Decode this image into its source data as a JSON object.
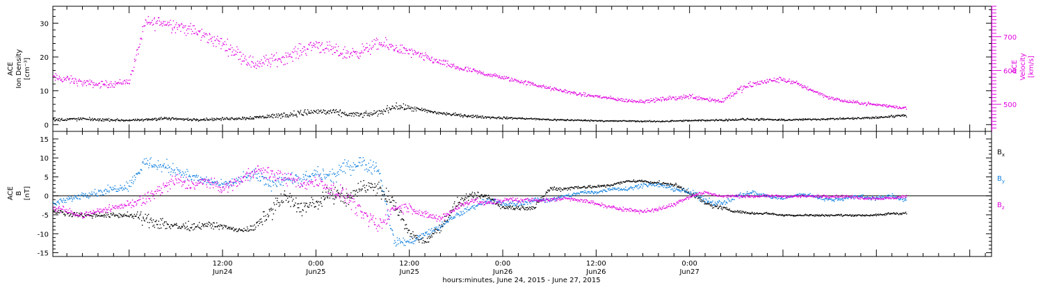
{
  "chart_data": [
    {
      "type": "scatter",
      "panel": "top",
      "ylabel_left": [
        "ACE",
        "Ion Density",
        "[cm⁻³]"
      ],
      "ylabel_right": [
        "ACE",
        "Velocity",
        "[km/s]"
      ],
      "ylim_left": [
        -2,
        35
      ],
      "ylim_right": [
        420,
        790
      ],
      "left_ticks": [
        "0",
        "10",
        "20",
        "30"
      ],
      "right_ticks": [
        "500",
        "600",
        "700"
      ],
      "series": [
        {
          "axis": "left",
          "color": "#000000",
          "x": [
            -9.8,
            -8,
            -6,
            -4,
            -2,
            0,
            2,
            4,
            6,
            8,
            10,
            12,
            14,
            16,
            18,
            20,
            22,
            24,
            26,
            28,
            30,
            32,
            34,
            36,
            38,
            40,
            42,
            44,
            46,
            48,
            50,
            52,
            54,
            56,
            58,
            60,
            62,
            64,
            66,
            68,
            70,
            72,
            74,
            76,
            78,
            80,
            82,
            84,
            86,
            88,
            90,
            92,
            94,
            96,
            98,
            99.8
          ],
          "y": [
            1.5,
            1.7,
            1.8,
            1.6,
            1.5,
            1.4,
            1.5,
            2.0,
            1.8,
            1.6,
            1.7,
            1.8,
            2.0,
            2.2,
            2.6,
            3.0,
            3.5,
            4.0,
            3.8,
            3.2,
            3.0,
            3.6,
            5.5,
            5.0,
            4.2,
            3.5,
            3.0,
            2.6,
            2.3,
            2.1,
            2.0,
            1.8,
            1.6,
            1.5,
            1.4,
            1.3,
            1.2,
            1.2,
            1.1,
            1.1,
            1.2,
            1.3,
            1.4,
            1.5,
            1.6,
            1.7,
            1.6,
            1.5,
            1.6,
            1.7,
            1.8,
            1.9,
            2.0,
            2.2,
            2.6,
            3.0
          ],
          "spread": [
            0.7,
            0.7,
            0.7,
            0.6,
            0.5,
            0.4,
            0.5,
            0.8,
            0.6,
            0.5,
            0.6,
            0.6,
            0.7,
            0.8,
            1.0,
            1.2,
            1.4,
            1.6,
            1.4,
            1.2,
            1.1,
            1.4,
            1.5,
            1.2,
            1.0,
            0.8,
            0.7,
            0.6,
            0.5,
            0.5,
            0.4,
            0.4,
            0.4,
            0.4,
            0.3,
            0.3,
            0.3,
            0.3,
            0.3,
            0.3,
            0.3,
            0.3,
            0.4,
            0.4,
            0.5,
            0.5,
            0.4,
            0.4,
            0.4,
            0.4,
            0.4,
            0.4,
            0.5,
            0.5,
            0.6,
            0.7
          ]
        },
        {
          "axis": "right",
          "color": "#e000e0",
          "x": [
            -9.8,
            -8,
            -6,
            -4,
            -2,
            0,
            2,
            4,
            6,
            8,
            10,
            12,
            14,
            16,
            18,
            20,
            22,
            24,
            26,
            28,
            30,
            32,
            34,
            36,
            38,
            40,
            42,
            44,
            46,
            48,
            50,
            52,
            54,
            56,
            58,
            60,
            62,
            64,
            66,
            68,
            70,
            72,
            74,
            76,
            78,
            80,
            82,
            84,
            86,
            88,
            90,
            92,
            94,
            96,
            98,
            99.8
          ],
          "y": [
            580,
            575,
            565,
            560,
            562,
            570,
            740,
            745,
            735,
            720,
            700,
            680,
            650,
            620,
            630,
            640,
            660,
            680,
            660,
            650,
            660,
            680,
            670,
            655,
            640,
            625,
            610,
            600,
            590,
            580,
            570,
            560,
            548,
            540,
            530,
            525,
            518,
            512,
            510,
            515,
            520,
            525,
            518,
            510,
            540,
            560,
            570,
            575,
            560,
            540,
            520,
            510,
            505,
            500,
            495,
            490
          ],
          "spread": [
            20,
            18,
            16,
            15,
            15,
            15,
            30,
            30,
            30,
            30,
            30,
            30,
            30,
            30,
            30,
            28,
            30,
            30,
            30,
            28,
            28,
            28,
            25,
            22,
            18,
            15,
            14,
            12,
            10,
            10,
            10,
            9,
            8,
            8,
            8,
            8,
            8,
            8,
            8,
            9,
            10,
            12,
            10,
            12,
            15,
            15,
            12,
            12,
            10,
            9,
            8,
            7,
            7,
            7,
            7,
            7
          ]
        }
      ]
    },
    {
      "type": "scatter",
      "panel": "bottom",
      "ylabel": [
        "ACE",
        "B",
        "[nT]"
      ],
      "ylim": [
        -16,
        17
      ],
      "ticks": [
        "-15",
        "-10",
        "-5",
        "0",
        "5",
        "10",
        "15"
      ],
      "legend_placement": "right",
      "series": [
        {
          "name_base": "B",
          "name_sub": "x",
          "color": "#000000",
          "x": [
            -9.8,
            -8,
            -6,
            -4,
            -2,
            0,
            2,
            4,
            6,
            8,
            10,
            12,
            14,
            16,
            18,
            20,
            22,
            24,
            26,
            28,
            30,
            32,
            34,
            36,
            38,
            40,
            42,
            44,
            46,
            48,
            50,
            52,
            54,
            56,
            58,
            60,
            62,
            64,
            66,
            68,
            70,
            72,
            74,
            76,
            78,
            80,
            82,
            84,
            86,
            88,
            90,
            92,
            94,
            96,
            98,
            99.8
          ],
          "y": [
            -4,
            -4.5,
            -5,
            -5,
            -5,
            -5,
            -6,
            -7,
            -8,
            -8,
            -7.5,
            -8,
            -9,
            -8.5,
            -4,
            0,
            -3,
            -2,
            1,
            -1,
            3,
            2,
            -2,
            -10,
            -12,
            -8,
            -2,
            0,
            0,
            -3,
            -3,
            -3,
            2,
            2,
            2.5,
            2.5,
            3,
            4,
            4,
            3.5,
            3,
            1,
            -2,
            -3,
            -4,
            -4.5,
            -4.5,
            -5,
            -5,
            -5,
            -5,
            -5,
            -5,
            -5,
            -4.5,
            -4.5
          ],
          "spread": [
            0.8,
            1,
            1,
            1,
            1,
            1,
            2.5,
            3,
            2,
            1.5,
            1.2,
            1,
            0.8,
            1.5,
            3,
            3,
            3,
            3,
            3,
            3,
            3,
            3,
            3,
            1.5,
            1.5,
            2,
            2,
            1.5,
            1.2,
            1,
            1,
            1,
            1,
            0.8,
            0.7,
            0.6,
            0.6,
            0.5,
            0.5,
            0.6,
            0.8,
            1,
            1,
            0.8,
            0.5,
            0.4,
            0.4,
            0.4,
            0.4,
            0.4,
            0.4,
            0.4,
            0.4,
            0.4,
            0.5,
            0.5
          ]
        },
        {
          "name_base": "B",
          "name_sub": "y",
          "color": "#1080e0",
          "x": [
            -9.8,
            -8,
            -6,
            -4,
            -2,
            0,
            2,
            4,
            6,
            8,
            10,
            12,
            14,
            16,
            18,
            20,
            22,
            24,
            26,
            28,
            30,
            32,
            34,
            36,
            38,
            40,
            42,
            44,
            46,
            48,
            50,
            52,
            54,
            56,
            58,
            60,
            62,
            64,
            66,
            68,
            70,
            72,
            74,
            76,
            78,
            80,
            82,
            84,
            86,
            88,
            90,
            92,
            94,
            96,
            98,
            99.8
          ],
          "y": [
            -2,
            -1,
            0.5,
            1,
            2,
            3,
            9,
            8,
            7,
            5,
            4,
            3,
            4,
            6,
            3,
            5,
            4,
            6,
            5,
            8,
            9,
            7,
            -12,
            -12,
            -10,
            -8,
            -5,
            -3,
            -1,
            -2,
            -2,
            -1,
            -1,
            0,
            1,
            1,
            2,
            2,
            3,
            3,
            2,
            1,
            -1,
            -2,
            0,
            1,
            0,
            -0.5,
            0.5,
            0,
            -1,
            -0.5,
            0,
            -0.5,
            0,
            -1
          ],
          "spread": [
            1,
            1.2,
            1.5,
            1.5,
            1.5,
            2,
            2.5,
            3,
            2.5,
            2,
            1.5,
            1.5,
            2,
            2.5,
            2.5,
            2.5,
            2.5,
            2.5,
            2.5,
            3,
            3,
            3,
            1.5,
            1.5,
            1.5,
            1.2,
            1.2,
            1.2,
            1,
            1,
            1,
            1,
            1,
            0.8,
            0.8,
            0.8,
            0.8,
            0.8,
            0.8,
            0.8,
            1,
            1.2,
            1.2,
            1.2,
            1,
            1,
            0.8,
            0.8,
            0.8,
            0.8,
            0.8,
            0.8,
            0.8,
            0.8,
            1,
            1
          ]
        },
        {
          "name_base": "B",
          "name_sub": "z",
          "color": "#e000e0",
          "x": [
            -9.8,
            -8,
            -6,
            -4,
            -2,
            0,
            2,
            4,
            6,
            8,
            10,
            12,
            14,
            16,
            18,
            20,
            22,
            24,
            26,
            28,
            30,
            32,
            34,
            36,
            38,
            40,
            42,
            44,
            46,
            48,
            50,
            52,
            54,
            56,
            58,
            60,
            62,
            64,
            66,
            68,
            70,
            72,
            74,
            76,
            78,
            80,
            82,
            84,
            86,
            88,
            90,
            92,
            94,
            96,
            98,
            99.8
          ],
          "y": [
            -3,
            -4,
            -5,
            -4,
            -3,
            -2,
            -1,
            2,
            4,
            3,
            4,
            2,
            4,
            7,
            6,
            5,
            3,
            4,
            2,
            0,
            -5,
            -8,
            -3,
            -3,
            -5,
            -6,
            -3,
            -1,
            -2,
            -1,
            -1,
            -1,
            -1,
            -0.5,
            -1,
            -2,
            -3,
            -3.5,
            -4,
            -3.5,
            -2,
            0,
            1,
            0,
            0,
            0,
            0,
            0,
            0,
            0,
            0,
            0,
            -0.5,
            -0.5,
            -0.5,
            0
          ],
          "spread": [
            1.5,
            1.5,
            1.2,
            1.2,
            1.2,
            1.5,
            2.5,
            3,
            3,
            2.5,
            2,
            2,
            2.5,
            2.5,
            2.5,
            2.5,
            2.5,
            2.5,
            3,
            3,
            3,
            3,
            2,
            2,
            1.5,
            1.5,
            1.2,
            1.2,
            1,
            1,
            1,
            0.8,
            0.8,
            0.8,
            0.8,
            0.8,
            0.8,
            0.8,
            0.8,
            0.8,
            0.8,
            0.8,
            0.8,
            0.6,
            0.6,
            0.6,
            0.6,
            0.6,
            0.6,
            0.6,
            0.6,
            0.6,
            0.6,
            0.6,
            0.6,
            0.6
          ]
        }
      ]
    }
  ],
  "x_axis": {
    "units": "hours since Jun 24 00:00",
    "range": [
      -9.8,
      110.8
    ],
    "ticks": [
      {
        "x": 12,
        "time": "12:00",
        "date": "Jun24"
      },
      {
        "x": 24,
        "time": "0:00",
        "date": "Jun25"
      },
      {
        "x": 36,
        "time": "12:00",
        "date": "Jun25"
      },
      {
        "x": 48,
        "time": "0:00",
        "date": "Jun26"
      },
      {
        "x": 60,
        "time": "12:00",
        "date": "Jun26"
      },
      {
        "x": 72,
        "time": "0:00",
        "date": "Jun27"
      }
    ],
    "label": "hours:minutes, June 24, 2015 - June 27, 2015"
  }
}
